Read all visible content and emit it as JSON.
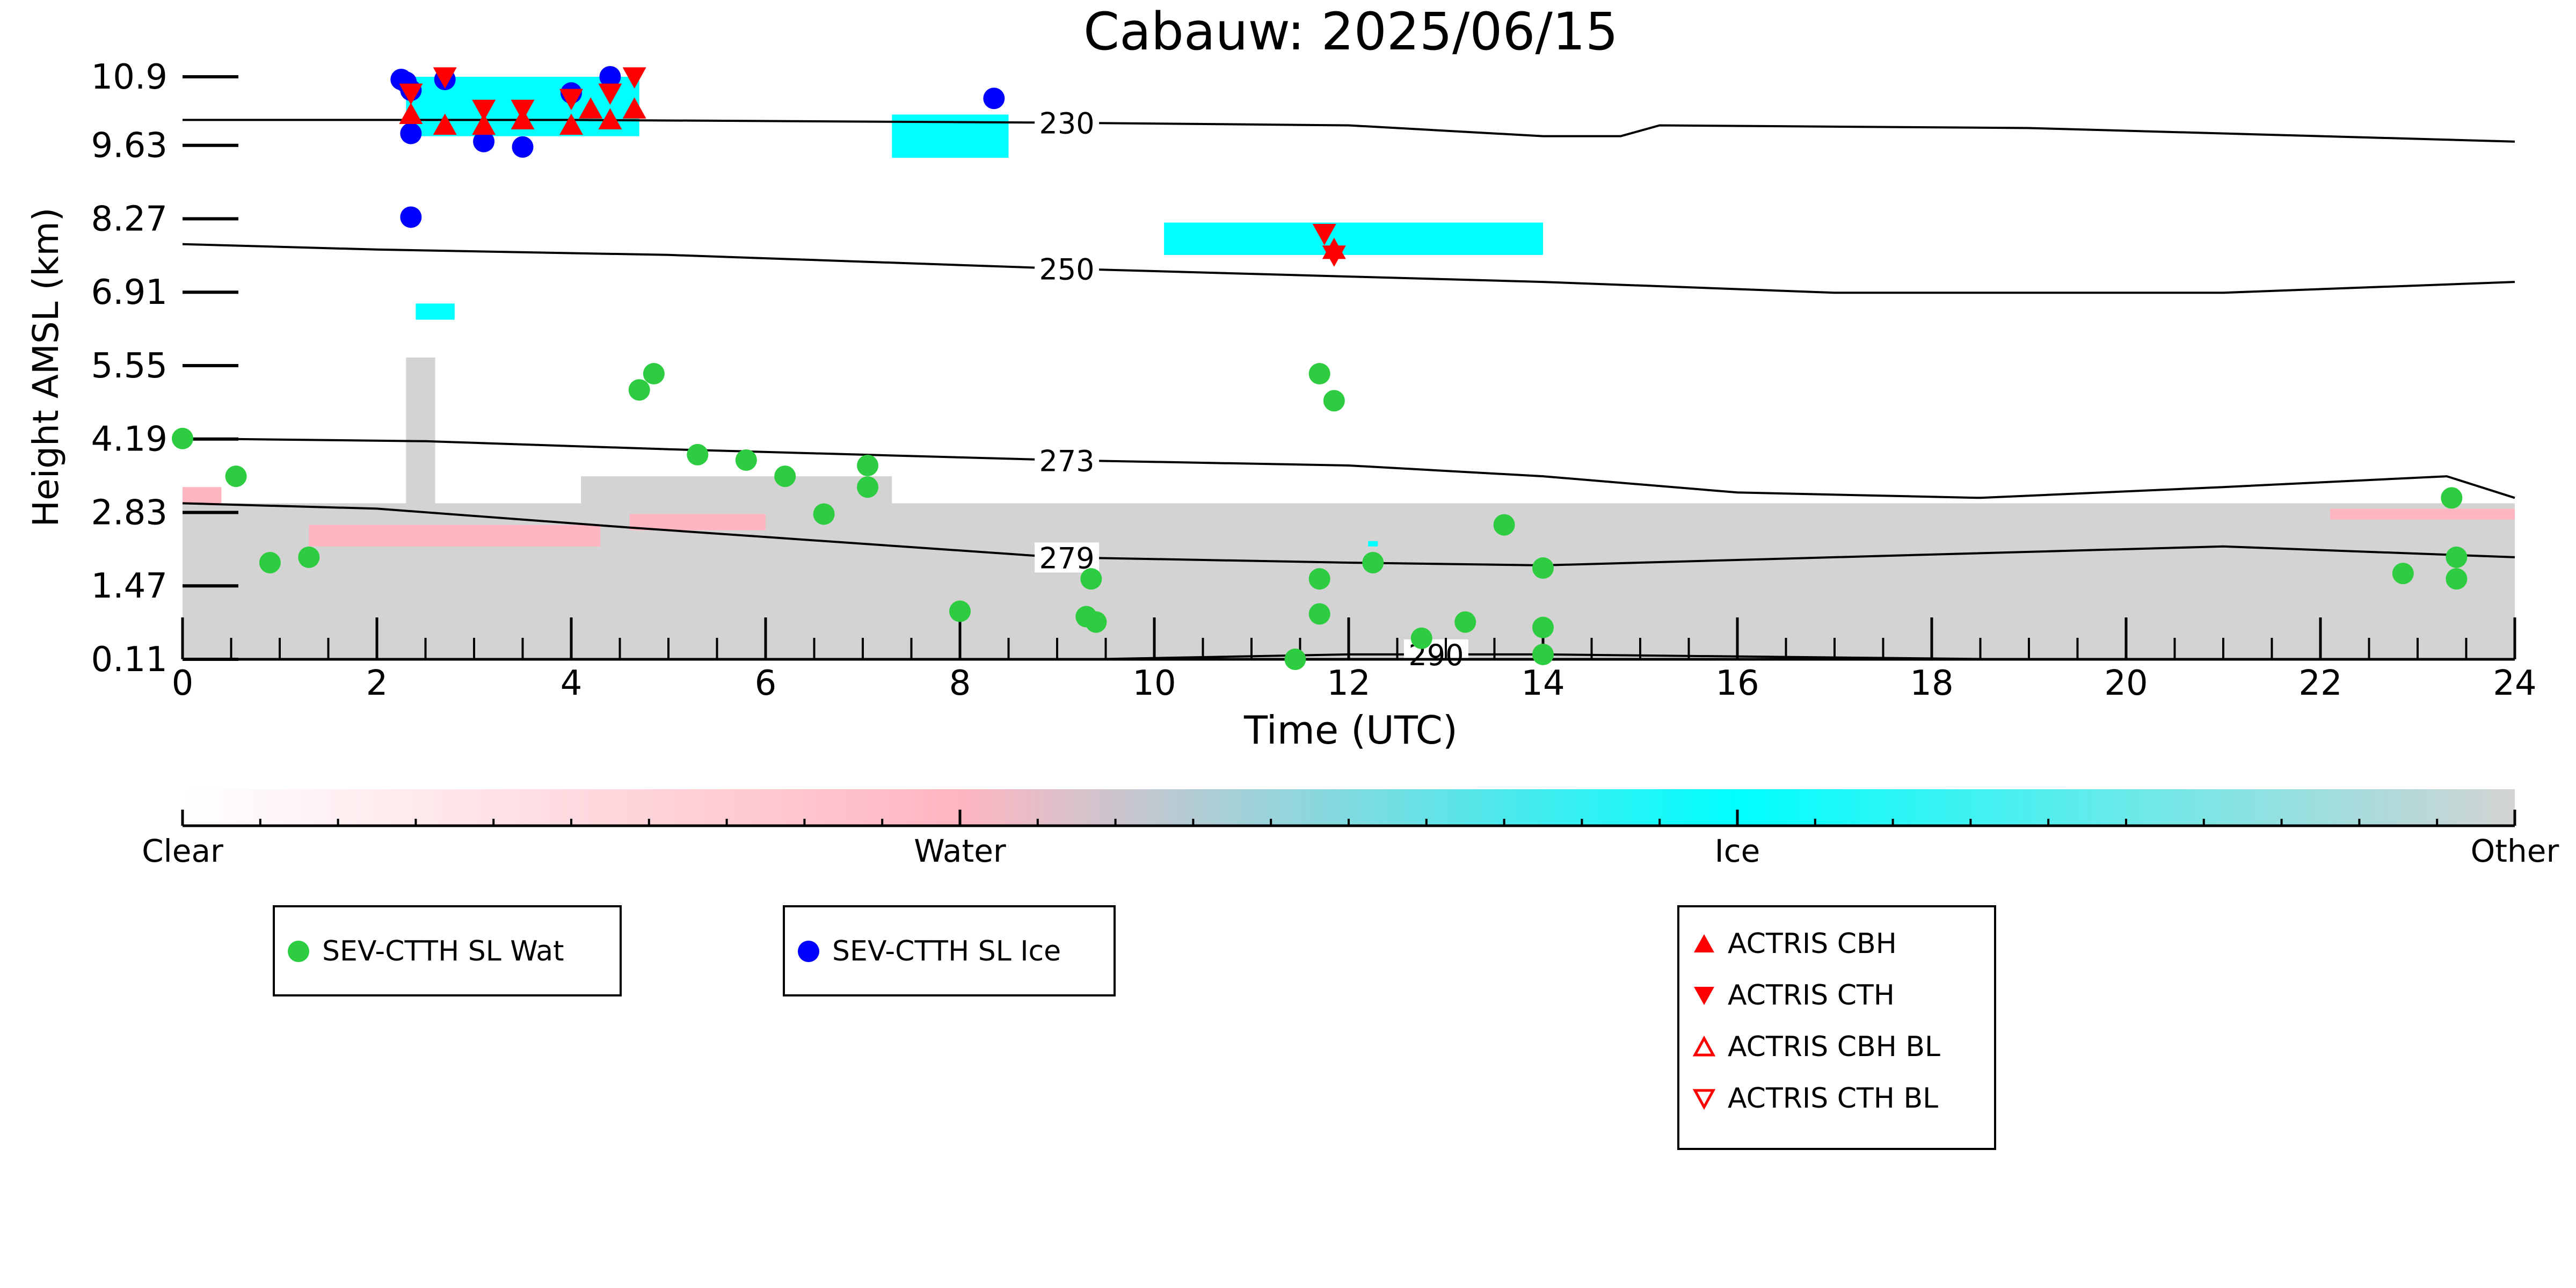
{
  "chart_data": {
    "type": "scatter",
    "title": "Cabauw: 2025/06/15",
    "xlabel": "Time (UTC)",
    "ylabel": "Height AMSL (km)",
    "xlim": [
      0,
      24
    ],
    "ylim": [
      0.11,
      10.9
    ],
    "x_ticks": [
      "0",
      "2",
      "4",
      "6",
      "8",
      "10",
      "12",
      "14",
      "16",
      "18",
      "20",
      "22",
      "24"
    ],
    "y_ticks": [
      "0.11",
      "1.47",
      "2.83",
      "4.19",
      "5.55",
      "6.91",
      "8.27",
      "9.63",
      "10.9"
    ],
    "grid": false,
    "background_classification": {
      "description_levels": [
        "Clear",
        "Water",
        "Ice",
        "Other"
      ],
      "colors": {
        "Clear": "#ffffff",
        "Water": "#ffb6c1",
        "Ice": "#00ffff",
        "Other": "#d3d3d3"
      },
      "other_regions": [
        {
          "t_start": 0.0,
          "t_end": 24.0,
          "h_bottom": 0.11,
          "h_top": 3.0
        },
        {
          "t_start": 2.3,
          "t_end": 2.6,
          "h_bottom": 0.11,
          "h_top": 5.7
        },
        {
          "t_start": 4.1,
          "t_end": 7.3,
          "h_bottom": 0.11,
          "h_top": 3.5
        }
      ],
      "water_regions": [
        {
          "t_start": 0.0,
          "t_end": 0.4,
          "h_bottom": 3.0,
          "h_top": 3.3
        },
        {
          "t_start": 1.3,
          "t_end": 4.3,
          "h_bottom": 2.2,
          "h_top": 2.6
        },
        {
          "t_start": 4.6,
          "t_end": 6.0,
          "h_bottom": 2.5,
          "h_top": 2.8
        },
        {
          "t_start": 22.1,
          "t_end": 24.0,
          "h_bottom": 2.7,
          "h_top": 2.9
        }
      ],
      "ice_regions": [
        {
          "t_start": 2.3,
          "t_end": 4.7,
          "h_bottom": 9.8,
          "h_top": 10.9
        },
        {
          "t_start": 2.4,
          "t_end": 2.8,
          "h_bottom": 6.4,
          "h_top": 6.7
        },
        {
          "t_start": 7.3,
          "t_end": 8.5,
          "h_bottom": 9.4,
          "h_top": 10.2
        },
        {
          "t_start": 10.1,
          "t_end": 14.0,
          "h_bottom": 7.6,
          "h_top": 8.2
        },
        {
          "t_start": 12.2,
          "t_end": 12.3,
          "h_bottom": 2.2,
          "h_top": 2.3
        }
      ]
    },
    "isotherms": [
      {
        "label": "230",
        "label_x": 9.1,
        "points": [
          [
            0,
            10.1
          ],
          [
            4,
            10.1
          ],
          [
            9,
            10.05
          ],
          [
            12,
            10.0
          ],
          [
            14,
            9.8
          ],
          [
            14.8,
            9.8
          ],
          [
            15.2,
            10.0
          ],
          [
            19,
            9.95
          ],
          [
            24,
            9.7
          ]
        ]
      },
      {
        "label": "250",
        "label_x": 9.1,
        "points": [
          [
            0,
            7.8
          ],
          [
            2,
            7.7
          ],
          [
            5,
            7.6
          ],
          [
            9,
            7.35
          ],
          [
            12,
            7.2
          ],
          [
            14,
            7.1
          ],
          [
            17,
            6.9
          ],
          [
            21,
            6.9
          ],
          [
            24,
            7.1
          ]
        ]
      },
      {
        "label": "273",
        "label_x": 9.1,
        "points": [
          [
            0,
            4.2
          ],
          [
            2.5,
            4.15
          ],
          [
            5,
            4.0
          ],
          [
            9,
            3.8
          ],
          [
            12,
            3.7
          ],
          [
            14,
            3.5
          ],
          [
            16,
            3.2
          ],
          [
            18.5,
            3.1
          ],
          [
            21,
            3.3
          ],
          [
            23.3,
            3.5
          ],
          [
            24,
            3.1
          ]
        ]
      },
      {
        "label": "279",
        "label_x": 9.1,
        "points": [
          [
            0,
            3.0
          ],
          [
            2,
            2.9
          ],
          [
            4.6,
            2.55
          ],
          [
            9,
            2.0
          ],
          [
            12,
            1.9
          ],
          [
            14,
            1.85
          ],
          [
            17,
            2.0
          ],
          [
            21,
            2.2
          ],
          [
            24,
            2.0
          ]
        ]
      },
      {
        "label": "290",
        "label_x": 12.9,
        "points": [
          [
            9.3,
            0.11
          ],
          [
            12,
            0.2
          ],
          [
            14,
            0.2
          ],
          [
            18.8,
            0.11
          ]
        ]
      }
    ],
    "series": [
      {
        "name": "SEV-CTTH SL Wat",
        "marker": "circle",
        "color": "#2ecc40",
        "points": [
          [
            0.0,
            4.2
          ],
          [
            0.55,
            3.5
          ],
          [
            0.9,
            1.9
          ],
          [
            1.3,
            2.0
          ],
          [
            4.7,
            5.1
          ],
          [
            4.85,
            5.4
          ],
          [
            5.3,
            3.9
          ],
          [
            5.8,
            3.8
          ],
          [
            6.2,
            3.5
          ],
          [
            6.6,
            2.8
          ],
          [
            7.05,
            3.7
          ],
          [
            7.05,
            3.3
          ],
          [
            8.0,
            1.0
          ],
          [
            9.3,
            0.9
          ],
          [
            9.35,
            1.6
          ],
          [
            9.4,
            0.8
          ],
          [
            11.45,
            0.11
          ],
          [
            11.7,
            5.4
          ],
          [
            11.7,
            1.6
          ],
          [
            11.7,
            0.95
          ],
          [
            11.85,
            4.9
          ],
          [
            12.25,
            1.9
          ],
          [
            12.75,
            0.5
          ],
          [
            13.2,
            0.8
          ],
          [
            13.6,
            2.6
          ],
          [
            14.0,
            1.8
          ],
          [
            14.0,
            0.7
          ],
          [
            14.0,
            0.2
          ],
          [
            22.85,
            1.7
          ],
          [
            23.35,
            3.1
          ],
          [
            23.4,
            2.0
          ],
          [
            23.4,
            1.6
          ]
        ]
      },
      {
        "name": "SEV-CTTH SL Ice",
        "marker": "circle",
        "color": "#0000ff",
        "points": [
          [
            2.25,
            10.85
          ],
          [
            2.3,
            10.8
          ],
          [
            2.35,
            10.65
          ],
          [
            2.35,
            9.85
          ],
          [
            2.35,
            8.3
          ],
          [
            2.7,
            10.85
          ],
          [
            3.1,
            9.7
          ],
          [
            3.5,
            9.6
          ],
          [
            4.0,
            10.6
          ],
          [
            4.4,
            10.9
          ],
          [
            8.35,
            10.5
          ]
        ]
      },
      {
        "name": "ACTRIS CBH",
        "marker": "triangle-up",
        "color": "#ff0000",
        "points": [
          [
            2.35,
            10.2
          ],
          [
            2.7,
            10.0
          ],
          [
            3.1,
            10.0
          ],
          [
            3.5,
            10.1
          ],
          [
            4.0,
            10.0
          ],
          [
            4.2,
            10.3
          ],
          [
            4.4,
            10.1
          ],
          [
            4.65,
            10.3
          ],
          [
            11.85,
            7.7
          ]
        ]
      },
      {
        "name": "ACTRIS CTH",
        "marker": "triangle-down",
        "color": "#ff0000",
        "points": [
          [
            2.35,
            10.6
          ],
          [
            2.7,
            10.9
          ],
          [
            3.1,
            10.3
          ],
          [
            3.5,
            10.3
          ],
          [
            4.0,
            10.5
          ],
          [
            4.4,
            10.6
          ],
          [
            4.65,
            10.9
          ],
          [
            11.75,
            8.0
          ],
          [
            11.85,
            7.6
          ]
        ]
      },
      {
        "name": "ACTRIS CBH BL",
        "marker": "triangle-up-open",
        "color": "#ff0000",
        "points": []
      },
      {
        "name": "ACTRIS CTH BL",
        "marker": "triangle-down-open",
        "color": "#ff0000",
        "points": []
      }
    ],
    "colorbar": {
      "labels": [
        "Clear",
        "Water",
        "Ice",
        "Other"
      ],
      "colors": [
        "#ffffff",
        "#ffb6c1",
        "#00ffff",
        "#d3d3d3"
      ]
    },
    "legend_placement": "below"
  },
  "legends": {
    "box1": [
      {
        "label": "SEV-CTTH SL Wat",
        "marker": "circle",
        "color": "#2ecc40"
      }
    ],
    "box2": [
      {
        "label": "SEV-CTTH SL Ice",
        "marker": "circle",
        "color": "#0000ff"
      }
    ],
    "box3": [
      {
        "label": "ACTRIS CBH",
        "marker": "triangle-up",
        "color": "#ff0000"
      },
      {
        "label": "ACTRIS CTH",
        "marker": "triangle-down",
        "color": "#ff0000"
      },
      {
        "label": "ACTRIS CBH BL",
        "marker": "triangle-up-open",
        "color": "#ff0000"
      },
      {
        "label": "ACTRIS CTH BL",
        "marker": "triangle-down-open",
        "color": "#ff0000"
      }
    ]
  }
}
